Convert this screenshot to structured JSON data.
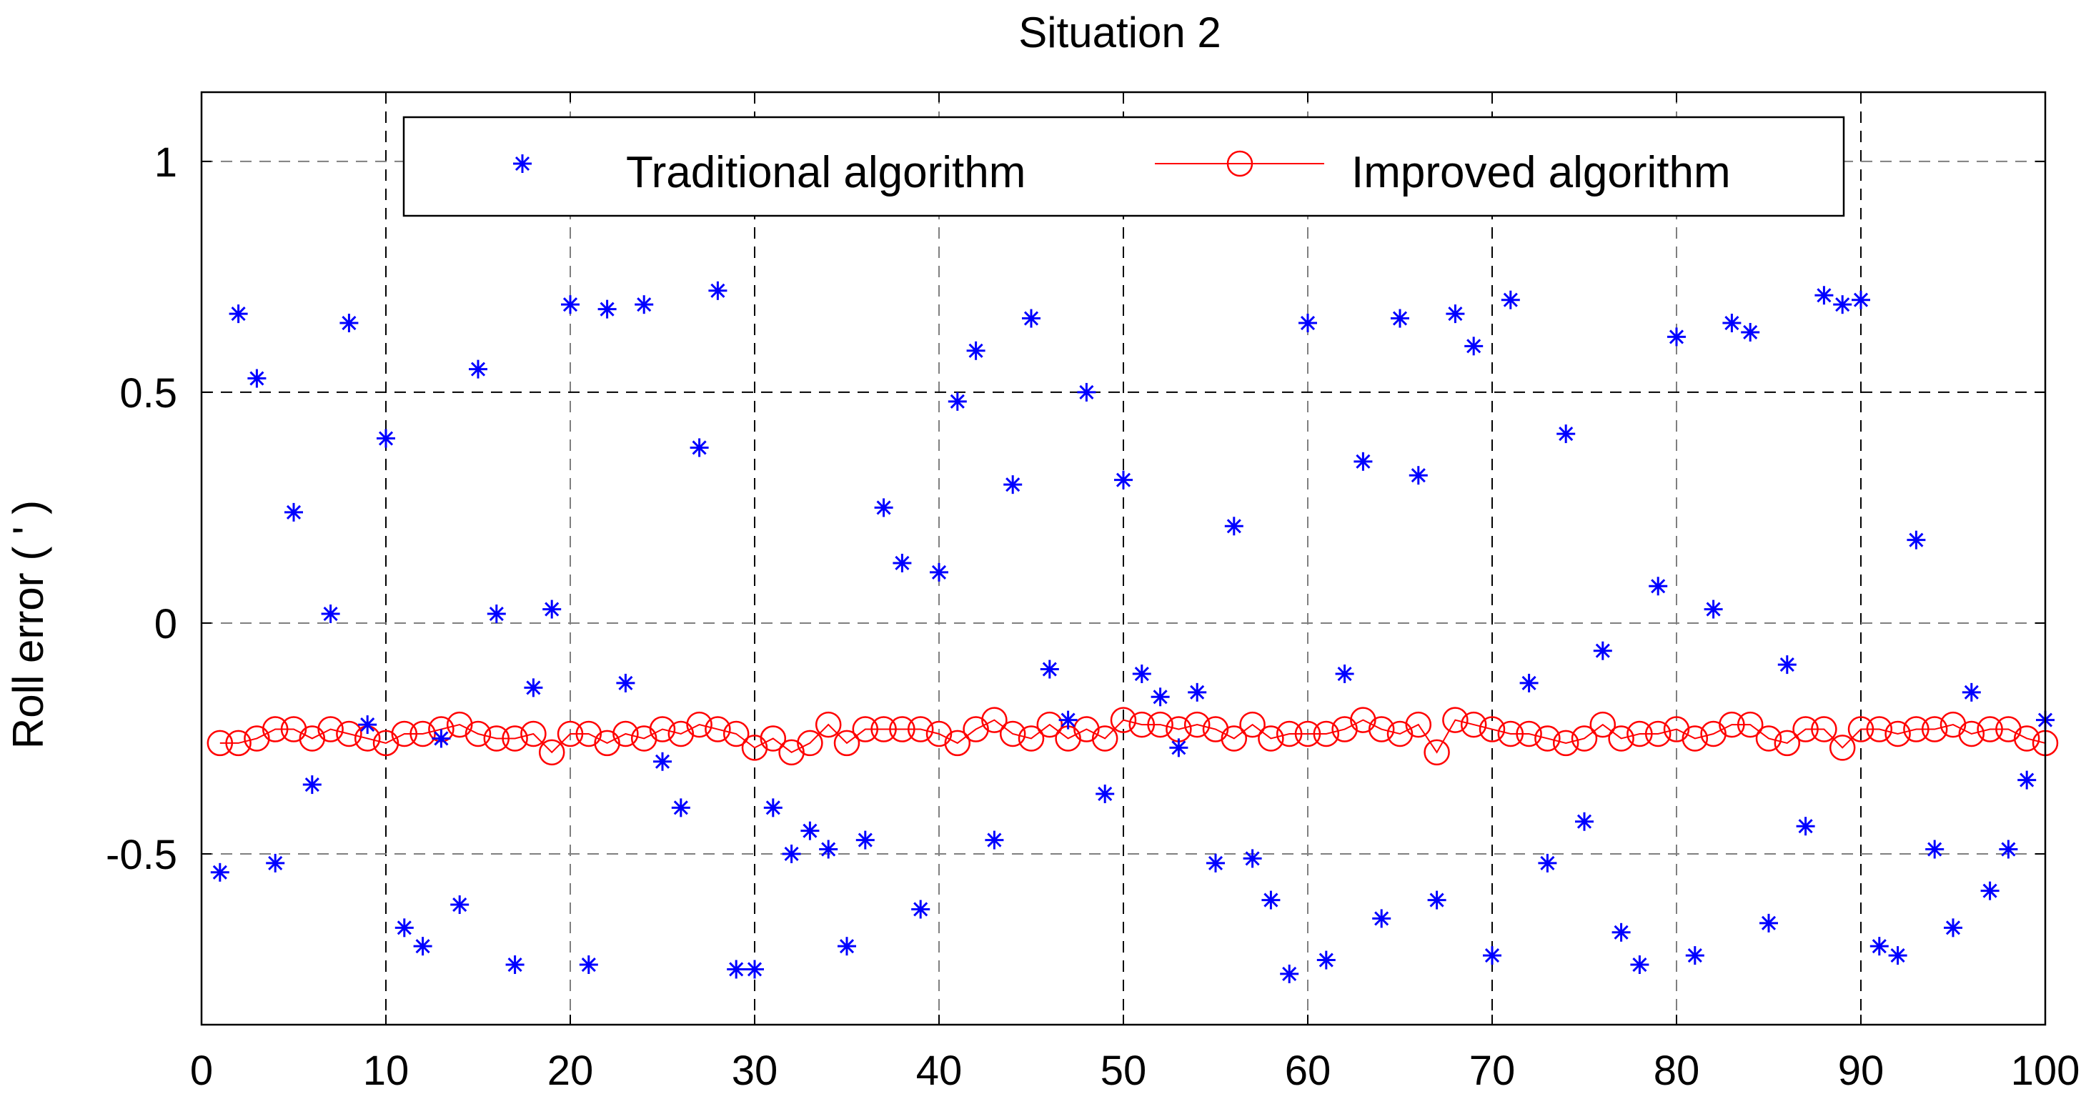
{
  "chart_data": {
    "type": "scatter",
    "title": "Situation 2",
    "xlabel": "",
    "ylabel": "Roll error ( ' )",
    "xlim": [
      0,
      100
    ],
    "ylim": [
      -0.87,
      1.15
    ],
    "xticks": [
      0,
      10,
      20,
      30,
      40,
      50,
      60,
      70,
      80,
      90,
      100
    ],
    "yticks": [
      -0.5,
      0,
      0.5,
      1
    ],
    "x_tick_labels": [
      "0",
      "10",
      "20",
      "30",
      "40",
      "50",
      "60",
      "70",
      "80",
      "90",
      "100"
    ],
    "y_tick_labels": [
      "-0.5",
      "0",
      "0.5",
      "1"
    ],
    "grid": true,
    "legend_position": "top",
    "colors": {
      "traditional": "#0000ff",
      "improved": "#ff0000",
      "axis": "#000000",
      "grid_major": "#000000",
      "grid_minor": "#7f7f7f"
    },
    "x": [
      1,
      2,
      3,
      4,
      5,
      6,
      7,
      8,
      9,
      10,
      11,
      12,
      13,
      14,
      15,
      16,
      17,
      18,
      19,
      20,
      21,
      22,
      23,
      24,
      25,
      26,
      27,
      28,
      29,
      30,
      31,
      32,
      33,
      34,
      35,
      36,
      37,
      38,
      39,
      40,
      41,
      42,
      43,
      44,
      45,
      46,
      47,
      48,
      49,
      50,
      51,
      52,
      53,
      54,
      55,
      56,
      57,
      58,
      59,
      60,
      61,
      62,
      63,
      64,
      65,
      66,
      67,
      68,
      69,
      70,
      71,
      72,
      73,
      74,
      75,
      76,
      77,
      78,
      79,
      80,
      81,
      82,
      83,
      84,
      85,
      86,
      87,
      88,
      89,
      90,
      91,
      92,
      93,
      94,
      95,
      96,
      97,
      98,
      99,
      100
    ],
    "series": [
      {
        "name": "Traditional algorithm",
        "marker": "asterisk",
        "values": [
          -0.54,
          0.67,
          0.53,
          -0.52,
          0.24,
          -0.35,
          0.02,
          0.65,
          -0.22,
          0.4,
          -0.66,
          -0.7,
          -0.25,
          -0.61,
          0.55,
          0.02,
          -0.74,
          -0.14,
          0.03,
          0.69,
          -0.74,
          0.68,
          -0.13,
          0.69,
          -0.3,
          -0.4,
          0.38,
          0.72,
          -0.75,
          -0.75,
          -0.4,
          -0.5,
          -0.45,
          -0.49,
          -0.7,
          -0.47,
          0.25,
          0.13,
          -0.62,
          0.11,
          0.48,
          0.59,
          -0.47,
          0.3,
          0.66,
          -0.1,
          -0.21,
          0.5,
          -0.37,
          0.31,
          -0.11,
          -0.16,
          -0.27,
          -0.15,
          -0.52,
          0.21,
          -0.51,
          -0.6,
          -0.76,
          0.65,
          -0.73,
          -0.11,
          0.35,
          -0.64,
          0.66,
          0.32,
          -0.6,
          0.67,
          0.6,
          -0.72,
          0.7,
          -0.13,
          -0.52,
          0.41,
          -0.43,
          -0.06,
          -0.67,
          -0.74,
          0.08,
          0.62,
          -0.72,
          0.03,
          0.65,
          0.63,
          -0.65,
          -0.09,
          -0.44,
          0.71,
          0.69,
          0.7,
          -0.7,
          -0.72,
          0.18,
          -0.49,
          -0.66,
          -0.15,
          -0.58,
          -0.49,
          -0.34,
          -0.21
        ]
      },
      {
        "name": "Improved algorithm",
        "marker": "circle-line",
        "values": [
          -0.26,
          -0.26,
          -0.25,
          -0.23,
          -0.23,
          -0.25,
          -0.23,
          -0.24,
          -0.25,
          -0.26,
          -0.24,
          -0.24,
          -0.23,
          -0.22,
          -0.24,
          -0.25,
          -0.25,
          -0.24,
          -0.28,
          -0.24,
          -0.24,
          -0.26,
          -0.24,
          -0.25,
          -0.23,
          -0.24,
          -0.22,
          -0.23,
          -0.24,
          -0.27,
          -0.25,
          -0.28,
          -0.26,
          -0.22,
          -0.26,
          -0.23,
          -0.23,
          -0.23,
          -0.23,
          -0.24,
          -0.26,
          -0.23,
          -0.21,
          -0.24,
          -0.25,
          -0.22,
          -0.25,
          -0.23,
          -0.25,
          -0.21,
          -0.22,
          -0.22,
          -0.23,
          -0.22,
          -0.23,
          -0.25,
          -0.22,
          -0.25,
          -0.24,
          -0.24,
          -0.24,
          -0.23,
          -0.21,
          -0.23,
          -0.24,
          -0.22,
          -0.28,
          -0.21,
          -0.22,
          -0.23,
          -0.24,
          -0.24,
          -0.25,
          -0.26,
          -0.25,
          -0.22,
          -0.25,
          -0.24,
          -0.24,
          -0.23,
          -0.25,
          -0.24,
          -0.22,
          -0.22,
          -0.25,
          -0.26,
          -0.23,
          -0.23,
          -0.27,
          -0.23,
          -0.23,
          -0.24,
          -0.23,
          -0.23,
          -0.22,
          -0.24,
          -0.23,
          -0.23,
          -0.25,
          -0.26
        ]
      }
    ]
  }
}
